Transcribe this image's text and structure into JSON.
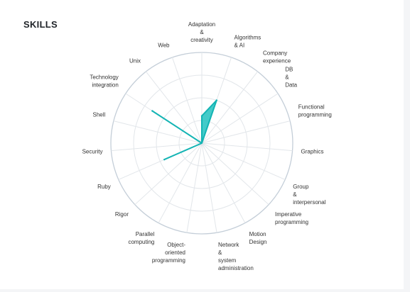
{
  "section_title": "SKILLS",
  "colors": {
    "accent": "#14b4b4",
    "accent_fill": "#22c2c0",
    "outer_ring": "#c4ced8",
    "grid": "#e2e6ea",
    "label": "#333333"
  },
  "chart_data": {
    "type": "radar",
    "title": "",
    "rmax": 100,
    "rings": 4,
    "grid": true,
    "categories": [
      [
        "Adaptation",
        "&",
        "creativity"
      ],
      [
        "Algorithms",
        "& AI"
      ],
      [
        "Company",
        "experience"
      ],
      [
        "DB",
        "&",
        "Data"
      ],
      [
        "Functional",
        "programming"
      ],
      [
        "Graphics"
      ],
      [
        "Group",
        "&",
        "interpersonal"
      ],
      [
        "Imperative",
        "programming"
      ],
      [
        "Motion",
        "Design"
      ],
      [
        "Network",
        "&",
        "system",
        "administration"
      ],
      [
        "Object-",
        "oriented",
        "programming"
      ],
      [
        "Parallel",
        "computing"
      ],
      [
        "Rigor"
      ],
      [
        "Ruby"
      ],
      [
        "Security"
      ],
      [
        "Shell"
      ],
      [
        "Technology",
        "integration"
      ],
      [
        "Unix"
      ],
      [
        "Web"
      ]
    ],
    "series": [
      {
        "values": [
          30,
          50,
          0,
          0,
          0,
          0,
          0,
          0,
          0,
          0,
          0,
          0,
          0,
          45,
          0,
          0,
          65,
          0,
          0
        ]
      }
    ]
  }
}
